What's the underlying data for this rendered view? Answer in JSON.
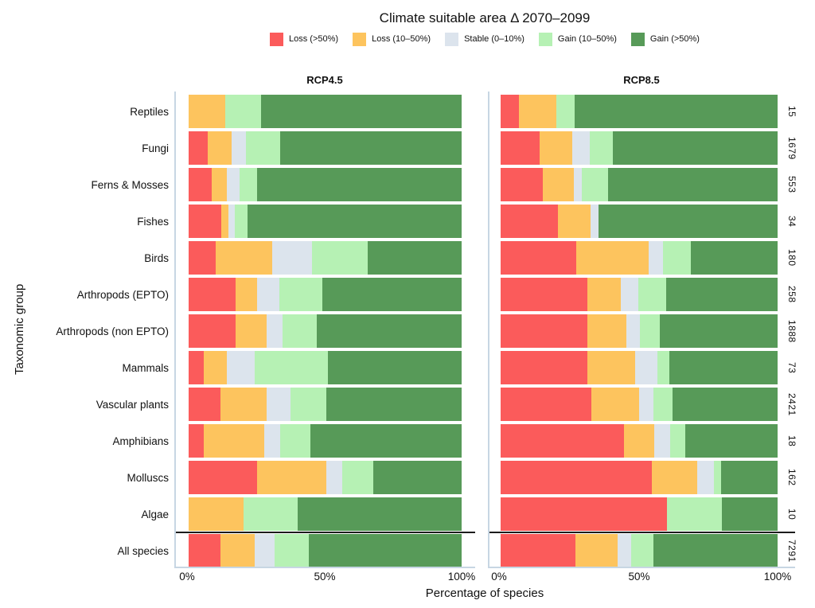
{
  "title": "Climate suitable area Δ 2070–2099",
  "xlabel": "Percentage of species",
  "ylabel": "Taxonomic group",
  "x_ticks": [
    "0%",
    "50%",
    "100%"
  ],
  "facet_strip_color": "#c7d6e3",
  "axis_line_color": "#c7d6e3",
  "legend": [
    {
      "label": "Loss (>50%)",
      "color": "#fb5b5b"
    },
    {
      "label": "Loss (10–50%)",
      "color": "#fdc45e"
    },
    {
      "label": "Stable (0–10%)",
      "color": "#dce4ed"
    },
    {
      "label": "Gain (10–50%)",
      "color": "#b6f1b4"
    },
    {
      "label": "Gain (>50%)",
      "color": "#579a58"
    }
  ],
  "chart_data": {
    "type": "bar",
    "stacked": true,
    "orientation": "horizontal",
    "title": "Climate suitable area Δ 2070–2099",
    "xlabel": "Percentage of species",
    "ylabel": "Taxonomic group",
    "xlim": [
      0,
      100
    ],
    "grid": false,
    "legend_position": "top",
    "series_labels": [
      "Loss (>50%)",
      "Loss (10–50%)",
      "Stable (0–10%)",
      "Gain (10–50%)",
      "Gain (>50%)"
    ],
    "categories": [
      "Reptiles",
      "Fungi",
      "Ferns & Mosses",
      "Fishes",
      "Birds",
      "Arthropods (EPTO)",
      "Arthropods (non EPTO)",
      "Mammals",
      "Vascular plants",
      "Amphibians",
      "Molluscs",
      "Algae",
      "All species"
    ],
    "n": [
      15,
      1679,
      553,
      34,
      180,
      258,
      1888,
      73,
      2421,
      18,
      162,
      10,
      7291
    ],
    "facets": [
      {
        "name": "RCP4.5",
        "rows": [
          [
            0,
            13.3,
            0,
            13.3,
            73.4
          ],
          [
            6.9,
            8.8,
            5.4,
            12.4,
            66.5
          ],
          [
            8.5,
            5.5,
            4.8,
            6.2,
            75.0
          ],
          [
            12.0,
            2.5,
            2.5,
            4.7,
            78.3
          ],
          [
            9.8,
            20.8,
            14.5,
            20.5,
            34.4
          ],
          [
            17.1,
            8.0,
            8.1,
            15.7,
            51.1
          ],
          [
            17.1,
            11.5,
            5.9,
            12.4,
            53.1
          ],
          [
            5.4,
            8.6,
            10.3,
            26.8,
            48.9
          ],
          [
            11.8,
            16.8,
            8.6,
            13.3,
            49.5
          ],
          [
            5.6,
            22.2,
            5.6,
            11.1,
            55.5
          ],
          [
            25.2,
            25.3,
            5.9,
            11.3,
            32.3
          ],
          [
            0,
            20,
            0,
            20,
            60
          ],
          [
            11.8,
            12.4,
            7.4,
            12.4,
            56.0
          ]
        ]
      },
      {
        "name": "RCP8.5",
        "rows": [
          [
            6.7,
            13.3,
            0,
            6.7,
            73.3
          ],
          [
            14.2,
            11.7,
            6.4,
            8.2,
            59.5
          ],
          [
            15.3,
            11.0,
            3.1,
            9.4,
            61.2
          ],
          [
            20.6,
            11.8,
            2.9,
            0,
            64.7
          ],
          [
            27.3,
            26.1,
            5.1,
            10.3,
            31.2
          ],
          [
            31.2,
            12.2,
            6.3,
            10.0,
            40.3
          ],
          [
            31.4,
            13.9,
            5.0,
            7.2,
            42.5
          ],
          [
            31.4,
            17.2,
            8.0,
            4.3,
            39.1
          ],
          [
            32.8,
            17.3,
            5.1,
            7.0,
            37.8
          ],
          [
            44.4,
            11.1,
            5.6,
            5.6,
            33.3
          ],
          [
            54.5,
            16.5,
            6.0,
            2.6,
            20.4
          ],
          [
            60,
            0,
            0,
            20,
            20
          ],
          [
            27.0,
            15.1,
            5.1,
            7.9,
            44.9
          ]
        ]
      }
    ]
  }
}
